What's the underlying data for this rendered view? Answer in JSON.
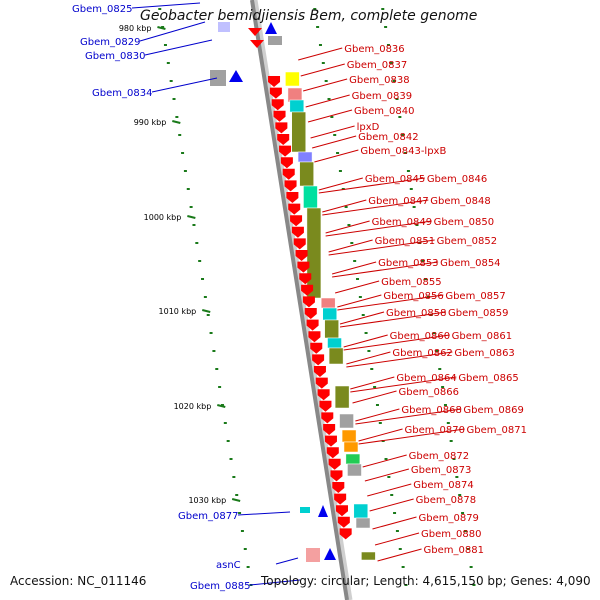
{
  "title": "Geobacter bemidjiensis Bem, complete genome",
  "footer": {
    "accession": "Accession: NC_011146",
    "stats": "Topology: circular; Length: 4,615,150 bp; Genes: 4,090"
  },
  "colors": {
    "reverse_gene": "#0000cc",
    "forward_gene": "#cc0000",
    "forward_arrow": "#ff0000",
    "reverse_arrow": "#0000ee",
    "backbone": "#888888",
    "tick": "#1a7a1a",
    "cog_olive": "#7a8a1e",
    "cog_cyan": "#00d0d0",
    "cog_pink": "#f08080",
    "cog_gray": "#a0a0a0",
    "cog_yellow": "#ffff00",
    "cog_orange": "#ff9900",
    "cog_green": "#22cc55"
  },
  "ticks": [
    "980 kbp",
    "990 kbp",
    "1000 kbp",
    "1010 kbp",
    "1020 kbp",
    "1030 kbp"
  ],
  "reverse_labels": [
    "Gbem_0825",
    "Gbem_0829",
    "Gbem_0830",
    "Gbem_0834",
    "Gbem_0877",
    "asnC",
    "Gbem_0885"
  ],
  "forward_labels": [
    "Gbem_0836",
    "Gbem_0837",
    "Gbem_0838",
    "Gbem_0839",
    "Gbem_0840",
    "lpxD",
    "Gbem_0842",
    "Gbem_0843-lpxB",
    "Gbem_0845",
    "Gbem_0846",
    "Gbem_0847",
    "Gbem_0848",
    "Gbem_0849",
    "Gbem_0850",
    "Gbem_0851",
    "Gbem_0852",
    "Gbem_0853",
    "Gbem_0854",
    "Gbem_0855",
    "Gbem_0856",
    "Gbem_0857",
    "Gbem_0858",
    "Gbem_0859",
    "Gbem_0860",
    "Gbem_0861",
    "Gbem_0862",
    "Gbem_0863",
    "Gbem_0864",
    "Gbem_0865",
    "Gbem_0866",
    "Gbem_0868",
    "Gbem_0869",
    "Gbem_0870",
    "Gbem_0871",
    "Gbem_0872",
    "Gbem_0873",
    "Gbem_0874",
    "Gbem_0878",
    "Gbem_0879",
    "Gbem_0880",
    "Gbem_0881"
  ]
}
